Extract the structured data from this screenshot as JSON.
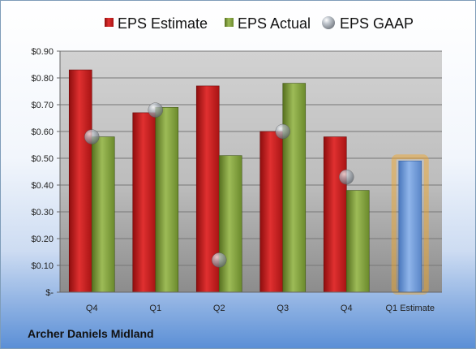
{
  "company": "Archer Daniels Midland",
  "chart_data": {
    "type": "bar",
    "title": "",
    "xlabel": "",
    "ylabel": "",
    "categories": [
      "Q4",
      "Q1",
      "Q2",
      "Q3",
      "Q4",
      "Q1 Estimate"
    ],
    "ylim": [
      0,
      0.9
    ],
    "yticks": [
      0,
      0.1,
      0.2,
      0.3,
      0.4,
      0.5,
      0.6,
      0.7,
      0.8,
      0.9
    ],
    "ytick_labels": [
      "$-",
      "$0.10",
      "$0.20",
      "$0.30",
      "$0.40",
      "$0.50",
      "$0.60",
      "$0.70",
      "$0.80",
      "$0.90"
    ],
    "legend_position": "top",
    "grid": true,
    "series": [
      {
        "name": "EPS Estimate",
        "kind": "bar",
        "color": "#cc1f1f",
        "values": [
          0.83,
          0.67,
          0.77,
          0.6,
          0.58,
          null
        ]
      },
      {
        "name": "EPS Actual",
        "kind": "bar",
        "color": "#7a9a3a",
        "values": [
          0.58,
          0.69,
          0.51,
          0.78,
          0.38,
          null
        ]
      },
      {
        "name": "EPS GAAP",
        "kind": "marker",
        "color": "#9aa4b0",
        "values": [
          0.58,
          0.68,
          0.12,
          0.6,
          0.43,
          null
        ]
      }
    ],
    "forecast": {
      "category": "Q1 Estimate",
      "value": 0.49,
      "color": "#6b97d6",
      "glow": "#f5a623"
    }
  }
}
